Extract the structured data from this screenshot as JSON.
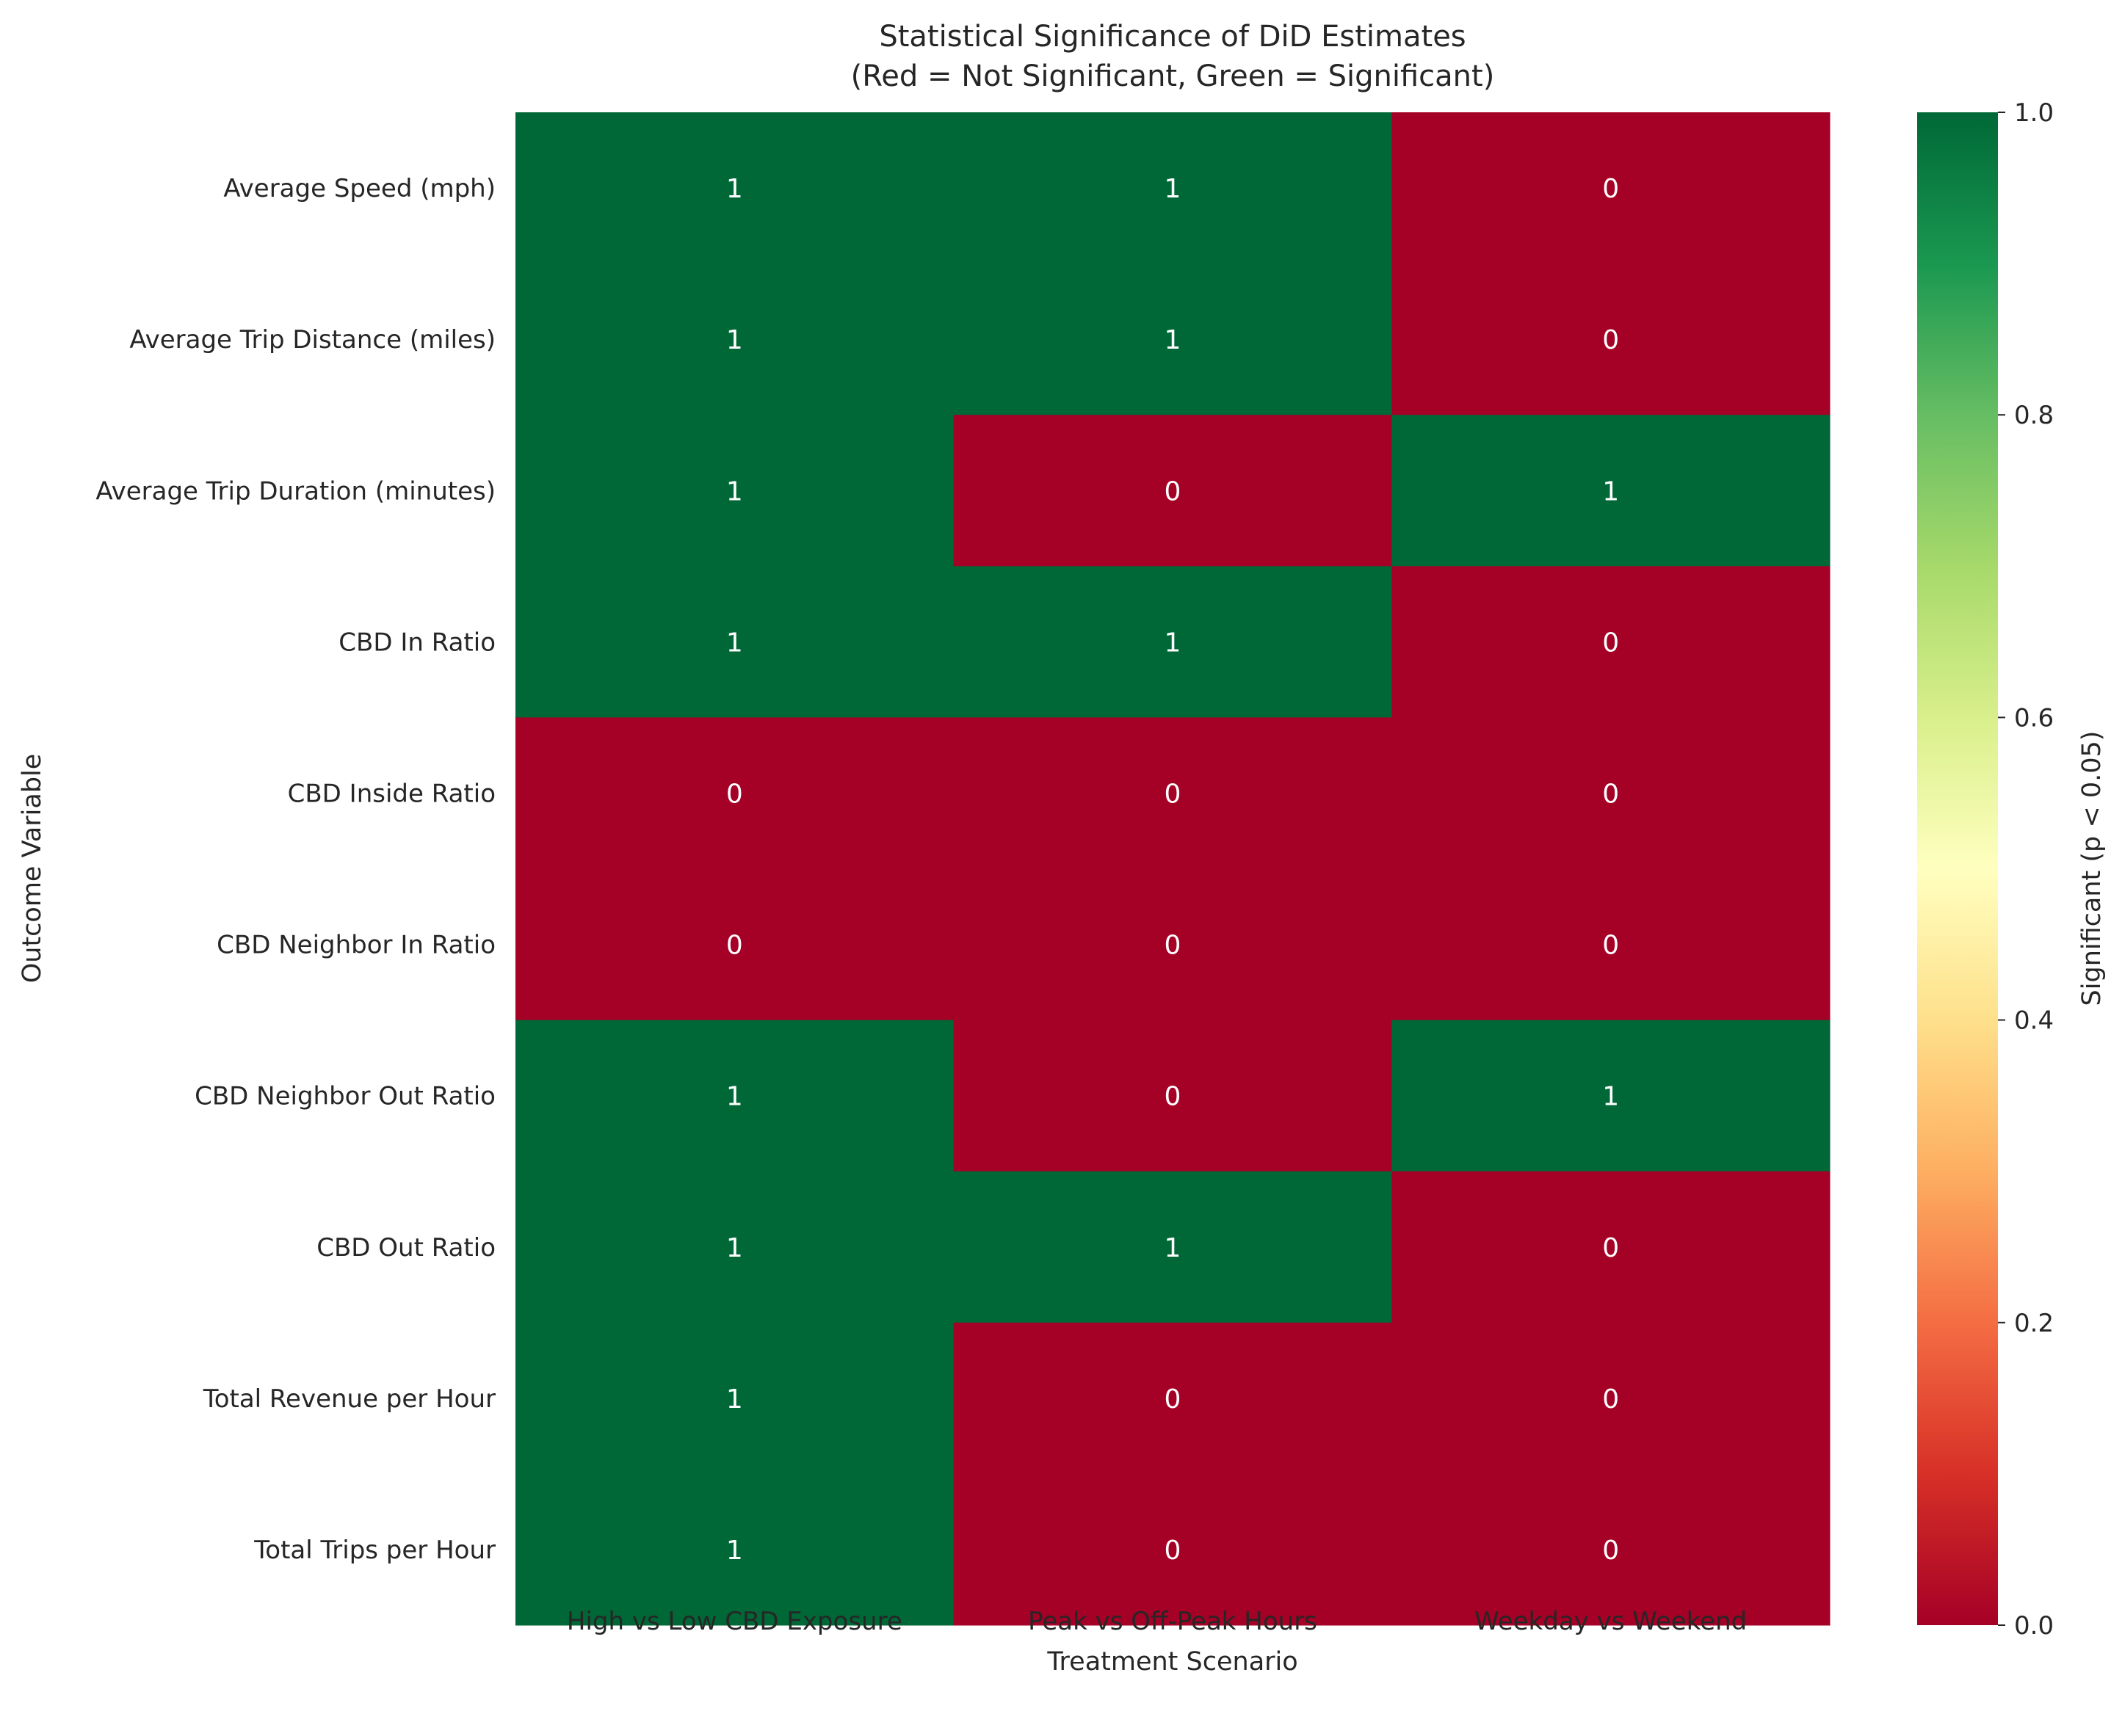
{
  "chart_data": {
    "type": "heatmap",
    "title": "Statistical Significance of DiD Estimates",
    "subtitle": "(Red = Not Significant, Green = Significant)",
    "xlabel": "Treatment Scenario",
    "ylabel": "Outcome Variable",
    "columns": [
      "High vs Low CBD Exposure",
      "Peak vs Off-Peak Hours",
      "Weekday vs Weekend"
    ],
    "rows": [
      "Average Speed (mph)",
      "Average Trip Distance (miles)",
      "Average Trip Duration (minutes)",
      "CBD In Ratio",
      "CBD Inside Ratio",
      "CBD Neighbor In Ratio",
      "CBD Neighbor Out Ratio",
      "CBD Out Ratio",
      "Total Revenue per Hour",
      "Total Trips per Hour"
    ],
    "values": [
      [
        1,
        1,
        0
      ],
      [
        1,
        1,
        0
      ],
      [
        1,
        0,
        1
      ],
      [
        1,
        1,
        0
      ],
      [
        0,
        0,
        0
      ],
      [
        0,
        0,
        0
      ],
      [
        1,
        0,
        1
      ],
      [
        1,
        1,
        0
      ],
      [
        1,
        0,
        0
      ],
      [
        1,
        0,
        0
      ]
    ],
    "colormap": "RdYlGn",
    "color_range": [
      0,
      1
    ],
    "colorbar": {
      "label": "Significant (p < 0.05)",
      "ticks": [
        "0.0",
        "0.2",
        "0.4",
        "0.6",
        "0.8",
        "1.0"
      ]
    },
    "colors": {
      "significant": "#006837",
      "not_significant": "#a50026"
    },
    "grid": false,
    "annotated": true
  }
}
